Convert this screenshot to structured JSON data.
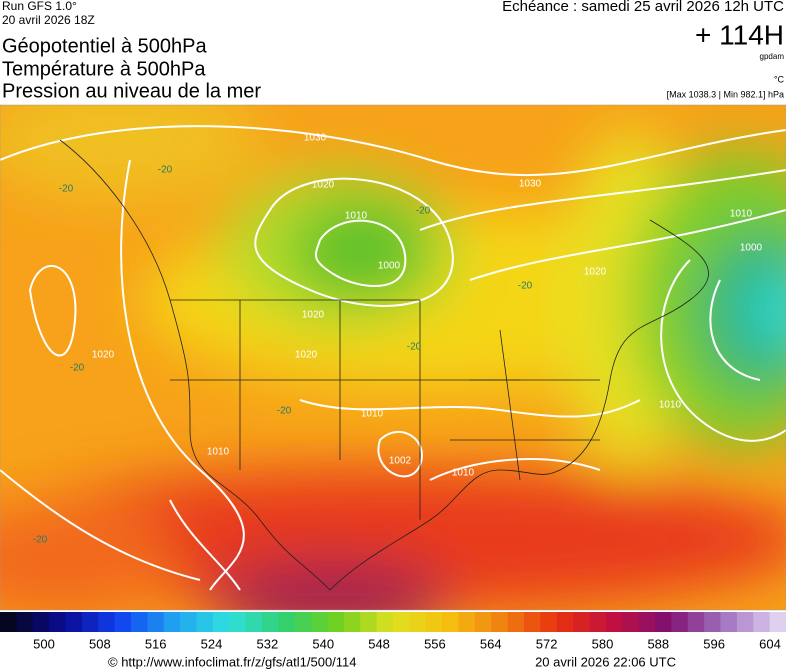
{
  "header": {
    "run": "Run GFS 1.0°",
    "run_date": "20 avril 2026 18Z",
    "titles": [
      "Géopotentiel à 500hPa",
      "Température à 500hPa",
      "Pression au niveau de la mer"
    ],
    "valid": "Echéance : samedi 25 avril 2026 12h UTC",
    "lead": "+ 114H",
    "unit_geo": "gpdam",
    "unit_temp": "°C",
    "extremes": "[Max 1038.3 | Min 982.1] hPa"
  },
  "map": {
    "contour_labels": [
      "1030",
      "1020",
      "1010",
      "1000",
      "1020",
      "1020",
      "1010",
      "1002",
      "1010",
      "1030",
      "1020",
      "1010",
      "1000",
      "1010",
      "1020",
      "1010",
      "-20",
      "-20",
      "-20",
      "-20",
      "-20",
      "-20",
      "-20",
      "-20"
    ]
  },
  "colorbar": {
    "ticks": [
      500,
      508,
      516,
      524,
      532,
      540,
      548,
      556,
      564,
      572,
      580,
      588,
      596,
      604
    ]
  },
  "footer": {
    "url": "© http://www.infoclimat.fr/z/gfs/atl1/500/114",
    "generated": "20 avril 2026 22:06 UTC"
  }
}
